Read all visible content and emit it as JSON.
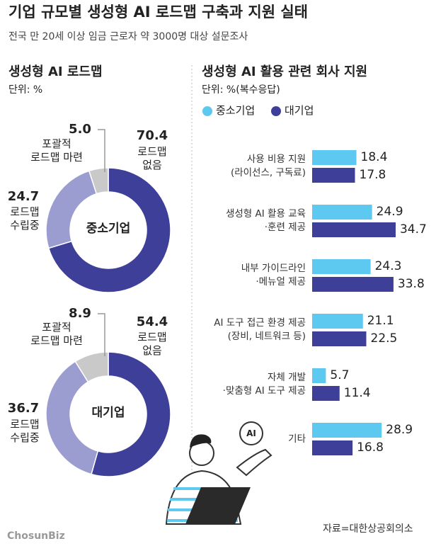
{
  "header": {
    "title": "기업 규모별 생성형 AI 로드맵 구축과 지원 실태",
    "subtitle": "전국 만 20세 이상 임금 근로자 약 3000명 대상 설문조사"
  },
  "chart_data": [
    {
      "type": "pie",
      "title": "생성형 AI 로드맵",
      "unit": "단위: %",
      "center_label": "중소기업",
      "categories": [
        "로드맵\n없음",
        "로드맵\n수립중",
        "포괄적\n로드맵 마련"
      ],
      "values": [
        70.4,
        24.7,
        5.0
      ],
      "value_labels": [
        "70.4",
        "24.7",
        "5.0"
      ],
      "colors": [
        "#3d3f99",
        "#9b9dd0",
        "#c9c9c9"
      ]
    },
    {
      "type": "pie",
      "center_label": "대기업",
      "categories": [
        "로드맵\n없음",
        "로드맵\n수립중",
        "포괄적\n로드맵 마련"
      ],
      "values": [
        54.4,
        36.7,
        8.9
      ],
      "value_labels": [
        "54.4",
        "36.7",
        "8.9"
      ],
      "colors": [
        "#3d3f99",
        "#9b9dd0",
        "#c9c9c9"
      ]
    },
    {
      "type": "hbar",
      "title": "생성형 AI 활용 관련 회사 지원",
      "unit": "단위: %(복수응답)",
      "categories": [
        "사용 비용 지원\n(라이선스, 구독료)",
        "생성형 AI 활용 교육\n·훈련 제공",
        "내부 가이드라인\n·메뉴얼 제공",
        "AI 도구 접근 환경 제공\n(장비, 네트워크 등)",
        "자체 개발\n·맞춤형 AI 도구 제공",
        "기타"
      ],
      "series": [
        {
          "name": "중소기업",
          "color": "#5ec9f0",
          "values": [
            18.4,
            24.9,
            24.3,
            21.1,
            5.7,
            28.9
          ]
        },
        {
          "name": "대기업",
          "color": "#3d3f99",
          "values": [
            17.8,
            34.7,
            33.8,
            22.5,
            11.4,
            16.8
          ]
        }
      ]
    }
  ],
  "illustration": {
    "icon_text": "AI"
  },
  "footer": {
    "logo": "ChosunBiz",
    "source": "자료=대한상공회의소"
  }
}
